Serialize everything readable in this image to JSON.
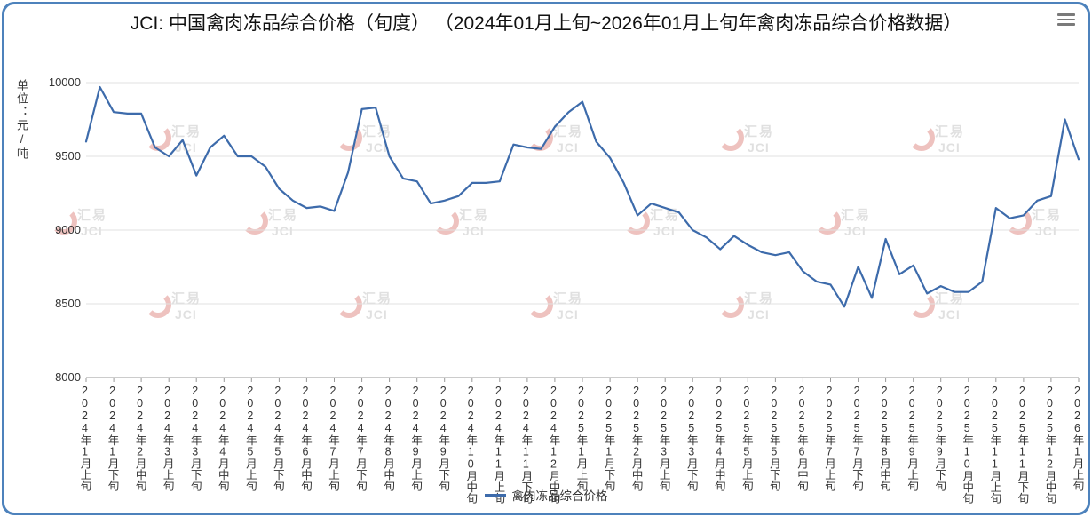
{
  "title": "JCI: 中国禽肉冻品综合价格（旬度） （2024年01月上旬~2026年01月上旬年禽肉冻品综合价格数据）",
  "menu": {
    "icon": "hamburger-menu-icon"
  },
  "watermark": {
    "text_top": "汇易",
    "text_bottom": "JCI",
    "text_color": "#9c9c9c",
    "accent_color": "#c8382e"
  },
  "legend": {
    "label": "禽肉冻品综合价格"
  },
  "chart_data": {
    "type": "line",
    "title": "JCI: 中国禽肉冻品综合价格（旬度） （2024年01月上旬~2026年01月上旬年禽肉冻品综合价格数据）",
    "xlabel": "",
    "ylabel": "单位：元/吨",
    "ylim": [
      8000,
      10000
    ],
    "y_ticks": [
      8000,
      8500,
      9000,
      9500,
      10000
    ],
    "grid": "horizontal",
    "legend_position": "bottom",
    "x_label_step": 2,
    "categories": [
      "2024年1月上旬",
      "2024年1月中旬",
      "2024年1月下旬",
      "2024年2月上旬",
      "2024年2月中旬",
      "2024年2月下旬",
      "2024年3月上旬",
      "2024年3月中旬",
      "2024年3月下旬",
      "2024年4月上旬",
      "2024年4月中旬",
      "2024年4月下旬",
      "2024年5月上旬",
      "2024年5月中旬",
      "2024年5月下旬",
      "2024年6月上旬",
      "2024年6月中旬",
      "2024年6月下旬",
      "2024年7月上旬",
      "2024年7月中旬",
      "2024年7月下旬",
      "2024年8月上旬",
      "2024年8月中旬",
      "2024年8月下旬",
      "2024年9月上旬",
      "2024年9月中旬",
      "2024年9月下旬",
      "2024年10月上旬",
      "2024年10月中旬",
      "2024年10月下旬",
      "2024年11月上旬",
      "2024年11月中旬",
      "2024年11月下旬",
      "2024年12月上旬",
      "2024年12月中旬",
      "2024年12月下旬",
      "2025年1月上旬",
      "2025年1月中旬",
      "2025年1月下旬",
      "2025年2月上旬",
      "2025年2月中旬",
      "2025年2月下旬",
      "2025年3月上旬",
      "2025年3月中旬",
      "2025年3月下旬",
      "2025年4月上旬",
      "2025年4月中旬",
      "2025年4月下旬",
      "2025年5月上旬",
      "2025年5月中旬",
      "2025年5月下旬",
      "2025年6月上旬",
      "2025年6月中旬",
      "2025年6月下旬",
      "2025年7月上旬",
      "2025年7月中旬",
      "2025年7月下旬",
      "2025年8月上旬",
      "2025年8月中旬",
      "2025年8月下旬",
      "2025年9月上旬",
      "2025年9月中旬",
      "2025年9月下旬",
      "2025年10月上旬",
      "2025年10月中旬",
      "2025年10月下旬",
      "2025年11月上旬",
      "2025年11月中旬",
      "2025年11月下旬",
      "2025年12月上旬",
      "2025年12月中旬",
      "2025年12月下旬",
      "2026年1月上旬"
    ],
    "series": [
      {
        "name": "禽肉冻品综合价格",
        "color": "#3d6bab",
        "values": [
          9600,
          9970,
          9800,
          9790,
          9790,
          9560,
          9500,
          9610,
          9370,
          9560,
          9640,
          9500,
          9500,
          9430,
          9280,
          9200,
          9150,
          9160,
          9130,
          9390,
          9820,
          9830,
          9500,
          9350,
          9330,
          9180,
          9200,
          9230,
          9320,
          9320,
          9330,
          9580,
          9560,
          9550,
          9700,
          9800,
          9870,
          9600,
          9490,
          9320,
          9100,
          9180,
          9150,
          9120,
          9000,
          8950,
          8870,
          8960,
          8900,
          8850,
          8830,
          8850,
          8720,
          8650,
          8630,
          8480,
          8750,
          8540,
          8940,
          8700,
          8760,
          8570,
          8620,
          8580,
          8580,
          8650,
          9150,
          9080,
          9100,
          9200,
          9230,
          9750,
          9480
        ]
      }
    ]
  }
}
